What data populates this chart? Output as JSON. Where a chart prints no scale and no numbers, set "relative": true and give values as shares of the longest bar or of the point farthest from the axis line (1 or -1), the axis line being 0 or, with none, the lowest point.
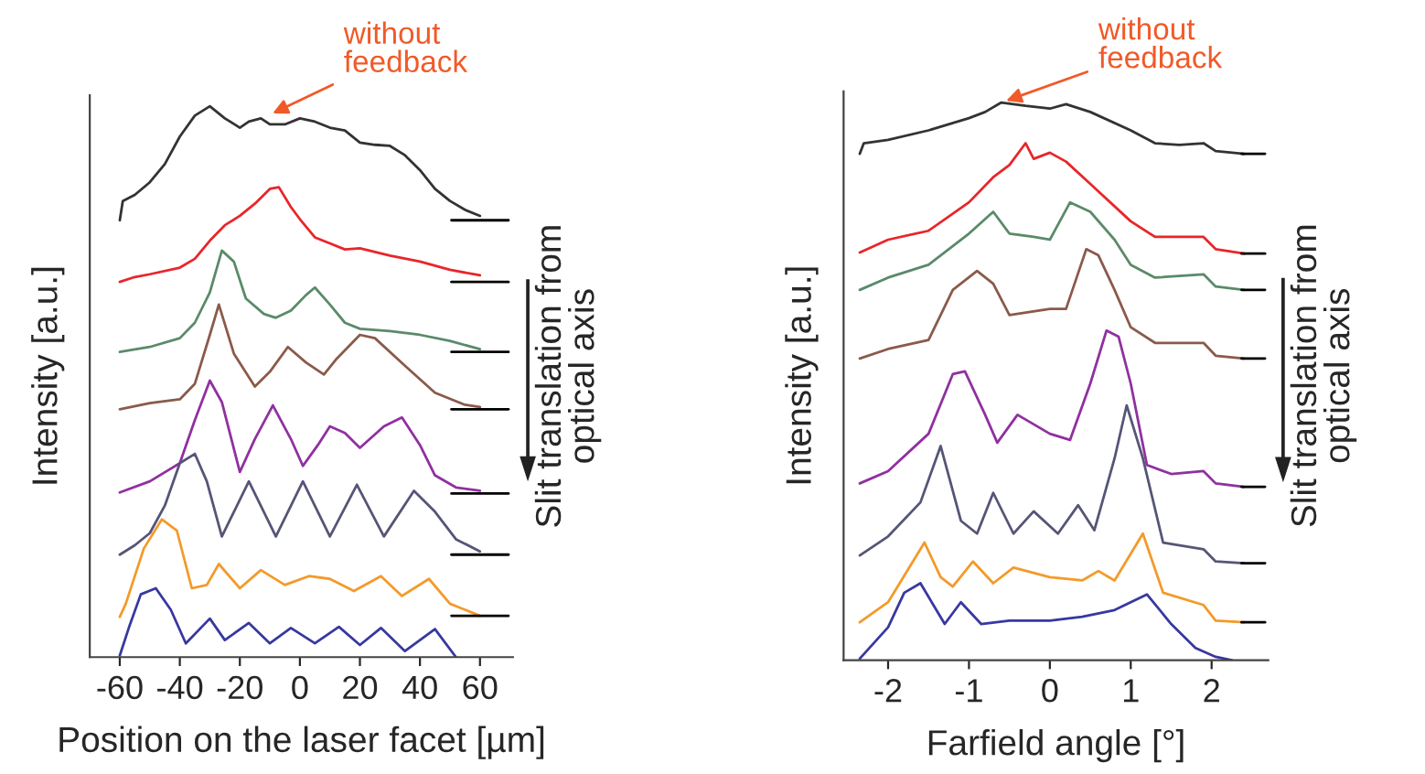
{
  "chart_data": [
    {
      "type": "line",
      "relative": true,
      "xlabel": "Position on the laser facet [µm]",
      "ylabel": "Intensity [a.u.]",
      "xlim": [
        -70,
        71
      ],
      "xticks": [
        -60,
        -40,
        -20,
        0,
        20,
        40,
        60
      ],
      "annotations": [
        {
          "text": "without\nfeedback",
          "x": -10.6,
          "y": 0.983
        },
        "Slit translation from\noptical axis"
      ],
      "series": [
        {
          "color": "#333333",
          "x": [
            -60,
            -59,
            -55,
            -50,
            -45,
            -40,
            -35,
            -30,
            -25,
            -20,
            -17,
            -13,
            -10,
            -5,
            0,
            5,
            10,
            15,
            20,
            25,
            30,
            35,
            40,
            45,
            50,
            55,
            60
          ],
          "values": [
            0.793,
            0.828,
            0.839,
            0.862,
            0.895,
            0.945,
            0.983,
            1.0,
            0.978,
            0.961,
            0.972,
            0.978,
            0.967,
            0.967,
            0.978,
            0.972,
            0.961,
            0.956,
            0.934,
            0.93,
            0.928,
            0.911,
            0.884,
            0.85,
            0.828,
            0.812,
            0.801
          ]
        },
        {
          "color": "#e8262a",
          "x": [
            -60,
            -55,
            -50,
            -40,
            -35,
            -30,
            -25,
            -20,
            -15,
            -10,
            -7,
            -3,
            0,
            5,
            10,
            15,
            20,
            30,
            40,
            50,
            60
          ],
          "values": [
            0.681,
            0.69,
            0.695,
            0.707,
            0.723,
            0.756,
            0.784,
            0.801,
            0.823,
            0.85,
            0.853,
            0.817,
            0.795,
            0.762,
            0.751,
            0.74,
            0.742,
            0.729,
            0.718,
            0.703,
            0.693
          ]
        },
        {
          "color": "#5a8a6a",
          "x": [
            -60,
            -50,
            -40,
            -35,
            -30,
            -26,
            -22,
            -18,
            -12,
            -8,
            -3,
            2,
            5,
            10,
            15,
            20,
            30,
            40,
            50,
            60
          ],
          "values": [
            0.554,
            0.563,
            0.579,
            0.607,
            0.662,
            0.738,
            0.718,
            0.651,
            0.623,
            0.616,
            0.629,
            0.657,
            0.671,
            0.64,
            0.607,
            0.596,
            0.592,
            0.585,
            0.574,
            0.559
          ]
        },
        {
          "color": "#8a5a4a",
          "x": [
            -60,
            -50,
            -40,
            -35,
            -30,
            -27,
            -22,
            -15,
            -10,
            -4,
            2,
            8,
            12,
            20,
            25,
            35,
            45,
            55,
            60
          ],
          "values": [
            0.45,
            0.461,
            0.468,
            0.496,
            0.585,
            0.64,
            0.551,
            0.491,
            0.518,
            0.563,
            0.535,
            0.513,
            0.54,
            0.585,
            0.579,
            0.529,
            0.48,
            0.458,
            0.454
          ]
        },
        {
          "color": "#9030a0",
          "x": [
            -60,
            -50,
            -40,
            -35,
            -30,
            -26,
            -20,
            -15,
            -9,
            -3,
            1,
            6,
            10,
            15,
            20,
            28,
            34,
            40,
            45,
            52,
            60
          ],
          "values": [
            0.299,
            0.319,
            0.352,
            0.43,
            0.502,
            0.463,
            0.336,
            0.396,
            0.457,
            0.396,
            0.347,
            0.385,
            0.419,
            0.407,
            0.38,
            0.419,
            0.435,
            0.385,
            0.33,
            0.308,
            0.302
          ]
        },
        {
          "color": "#555577",
          "x": [
            -60,
            -55,
            -50,
            -45,
            -40,
            -35,
            -31,
            -26,
            -17,
            -8,
            1,
            10,
            19,
            28,
            38,
            45,
            52,
            60
          ],
          "values": [
            0.186,
            0.203,
            0.225,
            0.275,
            0.352,
            0.369,
            0.319,
            0.219,
            0.319,
            0.219,
            0.319,
            0.219,
            0.313,
            0.219,
            0.302,
            0.264,
            0.214,
            0.192
          ]
        },
        {
          "color": "#f39a2a",
          "x": [
            -60,
            -58,
            -52,
            -46,
            -41,
            -36,
            -31,
            -27,
            -20,
            -13,
            -5,
            3,
            10,
            18,
            27,
            34,
            43,
            50,
            60
          ],
          "values": [
            0.073,
            0.097,
            0.197,
            0.25,
            0.23,
            0.125,
            0.131,
            0.169,
            0.125,
            0.158,
            0.131,
            0.147,
            0.142,
            0.12,
            0.147,
            0.111,
            0.142,
            0.097,
            0.075
          ]
        },
        {
          "color": "#3838a0",
          "x": [
            -60,
            -57,
            -53,
            -48,
            -43,
            -38,
            -30,
            -25,
            -17,
            -10,
            -3,
            5,
            13,
            20,
            27,
            35,
            45,
            52
          ],
          "values": [
            0.003,
            0.053,
            0.114,
            0.125,
            0.086,
            0.025,
            0.07,
            0.031,
            0.062,
            0.025,
            0.053,
            0.025,
            0.055,
            0.022,
            0.053,
            0.011,
            0.051,
            0.0
          ]
        },
        {
          "color": "#000000",
          "x": [
            50.5,
            69.5
          ],
          "values": [
            0.793,
            0.793
          ]
        },
        {
          "color": "#000000",
          "x": [
            50.5,
            69.5
          ],
          "values": [
            0.681,
            0.681
          ]
        },
        {
          "color": "#000000",
          "x": [
            50.5,
            69.5
          ],
          "values": [
            0.554,
            0.554
          ]
        },
        {
          "color": "#000000",
          "x": [
            50.5,
            69.5
          ],
          "values": [
            0.45,
            0.45
          ]
        },
        {
          "color": "#000000",
          "x": [
            50.5,
            69.5
          ],
          "values": [
            0.297,
            0.297
          ]
        },
        {
          "color": "#000000",
          "x": [
            50.5,
            69.5
          ],
          "values": [
            0.186,
            0.186
          ]
        },
        {
          "color": "#000000",
          "x": [
            50.5,
            69.5
          ],
          "values": [
            0.075,
            0.075
          ]
        }
      ]
    },
    {
      "type": "line",
      "relative": true,
      "xlabel": "Farfield angle [°]",
      "ylabel": "Intensity [a.u.]",
      "xlim": [
        -2.55,
        2.7
      ],
      "xticks": [
        -2,
        -1,
        0,
        1,
        2
      ],
      "annotations": [
        {
          "text": "without\nfeedback",
          "x": -0.6,
          "y": 1.0
        },
        "Slit translation from\noptical axis"
      ],
      "series": [
        {
          "color": "#333333",
          "x": [
            -2.35,
            -2.3,
            -2,
            -1.5,
            -1,
            -0.8,
            -0.6,
            -0.3,
            0,
            0.2,
            0.5,
            1,
            1.3,
            1.6,
            1.9,
            2.05,
            2.4
          ],
          "values": [
            0.908,
            0.927,
            0.933,
            0.95,
            0.972,
            0.983,
            1.0,
            0.994,
            0.989,
            0.997,
            0.983,
            0.95,
            0.927,
            0.924,
            0.927,
            0.913,
            0.908
          ]
        },
        {
          "color": "#e8262a",
          "x": [
            -2.35,
            -2,
            -1.5,
            -1,
            -0.7,
            -0.5,
            -0.3,
            -0.2,
            0,
            0.2,
            0.5,
            1,
            1.3,
            1.9,
            2.05,
            2.4
          ],
          "values": [
            0.731,
            0.754,
            0.77,
            0.821,
            0.866,
            0.888,
            0.927,
            0.899,
            0.91,
            0.894,
            0.854,
            0.787,
            0.759,
            0.759,
            0.737,
            0.729
          ]
        },
        {
          "color": "#5a8a6a",
          "x": [
            -2.35,
            -2,
            -1.5,
            -1,
            -0.7,
            -0.5,
            -0.2,
            0,
            0.25,
            0.5,
            0.8,
            1,
            1.3,
            1.9,
            2.05,
            2.4
          ],
          "values": [
            0.664,
            0.686,
            0.709,
            0.765,
            0.804,
            0.765,
            0.759,
            0.754,
            0.821,
            0.804,
            0.754,
            0.709,
            0.686,
            0.692,
            0.67,
            0.664
          ]
        },
        {
          "color": "#8a5a4a",
          "x": [
            -2.35,
            -2,
            -1.5,
            -1.2,
            -0.9,
            -0.7,
            -0.5,
            0,
            0.2,
            0.45,
            0.6,
            0.8,
            1,
            1.3,
            1.9,
            2.05,
            2.4
          ],
          "values": [
            0.541,
            0.558,
            0.574,
            0.664,
            0.698,
            0.675,
            0.619,
            0.63,
            0.63,
            0.737,
            0.726,
            0.664,
            0.597,
            0.569,
            0.569,
            0.546,
            0.541
          ]
        },
        {
          "color": "#9030a0",
          "x": [
            -2.35,
            -2,
            -1.5,
            -1.2,
            -1.05,
            -0.8,
            -0.65,
            -0.4,
            0,
            0.25,
            0.5,
            0.7,
            0.85,
            1,
            1.2,
            1.5,
            1.9,
            2.05,
            2.4
          ],
          "values": [
            0.317,
            0.339,
            0.406,
            0.513,
            0.518,
            0.44,
            0.39,
            0.44,
            0.406,
            0.395,
            0.496,
            0.591,
            0.58,
            0.496,
            0.35,
            0.334,
            0.339,
            0.317,
            0.311
          ]
        },
        {
          "color": "#555577",
          "x": [
            -2.35,
            -2,
            -1.6,
            -1.35,
            -1.1,
            -0.9,
            -0.7,
            -0.45,
            -0.2,
            0.1,
            0.35,
            0.55,
            0.8,
            0.95,
            1.15,
            1.4,
            1.9,
            2.05,
            2.4
          ],
          "values": [
            0.188,
            0.222,
            0.283,
            0.384,
            0.25,
            0.227,
            0.3,
            0.227,
            0.267,
            0.227,
            0.278,
            0.233,
            0.362,
            0.457,
            0.362,
            0.211,
            0.199,
            0.177,
            0.174
          ]
        },
        {
          "color": "#f39a2a",
          "x": [
            -2.35,
            -2,
            -1.55,
            -1.35,
            -1.2,
            -0.95,
            -0.7,
            -0.45,
            0,
            0.4,
            0.6,
            0.8,
            1.15,
            1.4,
            1.9,
            2.05,
            2.4
          ],
          "values": [
            0.068,
            0.104,
            0.211,
            0.149,
            0.132,
            0.177,
            0.138,
            0.166,
            0.149,
            0.143,
            0.16,
            0.143,
            0.227,
            0.121,
            0.099,
            0.071,
            0.068
          ]
        },
        {
          "color": "#3838a0",
          "x": [
            -2.35,
            -2,
            -1.8,
            -1.6,
            -1.3,
            -1.1,
            -0.85,
            -0.5,
            0,
            0.4,
            0.8,
            1.2,
            1.5,
            1.8,
            2.05,
            2.25
          ],
          "values": [
            0.003,
            0.059,
            0.121,
            0.138,
            0.065,
            0.104,
            0.065,
            0.071,
            0.071,
            0.078,
            0.09,
            0.118,
            0.065,
            0.022,
            0.006,
            0.0
          ]
        },
        {
          "color": "#000000",
          "x": [
            2.37,
            2.66
          ],
          "values": [
            0.908,
            0.908
          ]
        },
        {
          "color": "#000000",
          "x": [
            2.37,
            2.66
          ],
          "values": [
            0.729,
            0.729
          ]
        },
        {
          "color": "#000000",
          "x": [
            2.37,
            2.66
          ],
          "values": [
            0.664,
            0.664
          ]
        },
        {
          "color": "#000000",
          "x": [
            2.37,
            2.66
          ],
          "values": [
            0.541,
            0.541
          ]
        },
        {
          "color": "#000000",
          "x": [
            2.37,
            2.66
          ],
          "values": [
            0.311,
            0.311
          ]
        },
        {
          "color": "#000000",
          "x": [
            2.37,
            2.66
          ],
          "values": [
            0.174,
            0.174
          ]
        },
        {
          "color": "#000000",
          "x": [
            2.37,
            2.66
          ],
          "values": [
            0.068,
            0.068
          ]
        }
      ]
    }
  ]
}
